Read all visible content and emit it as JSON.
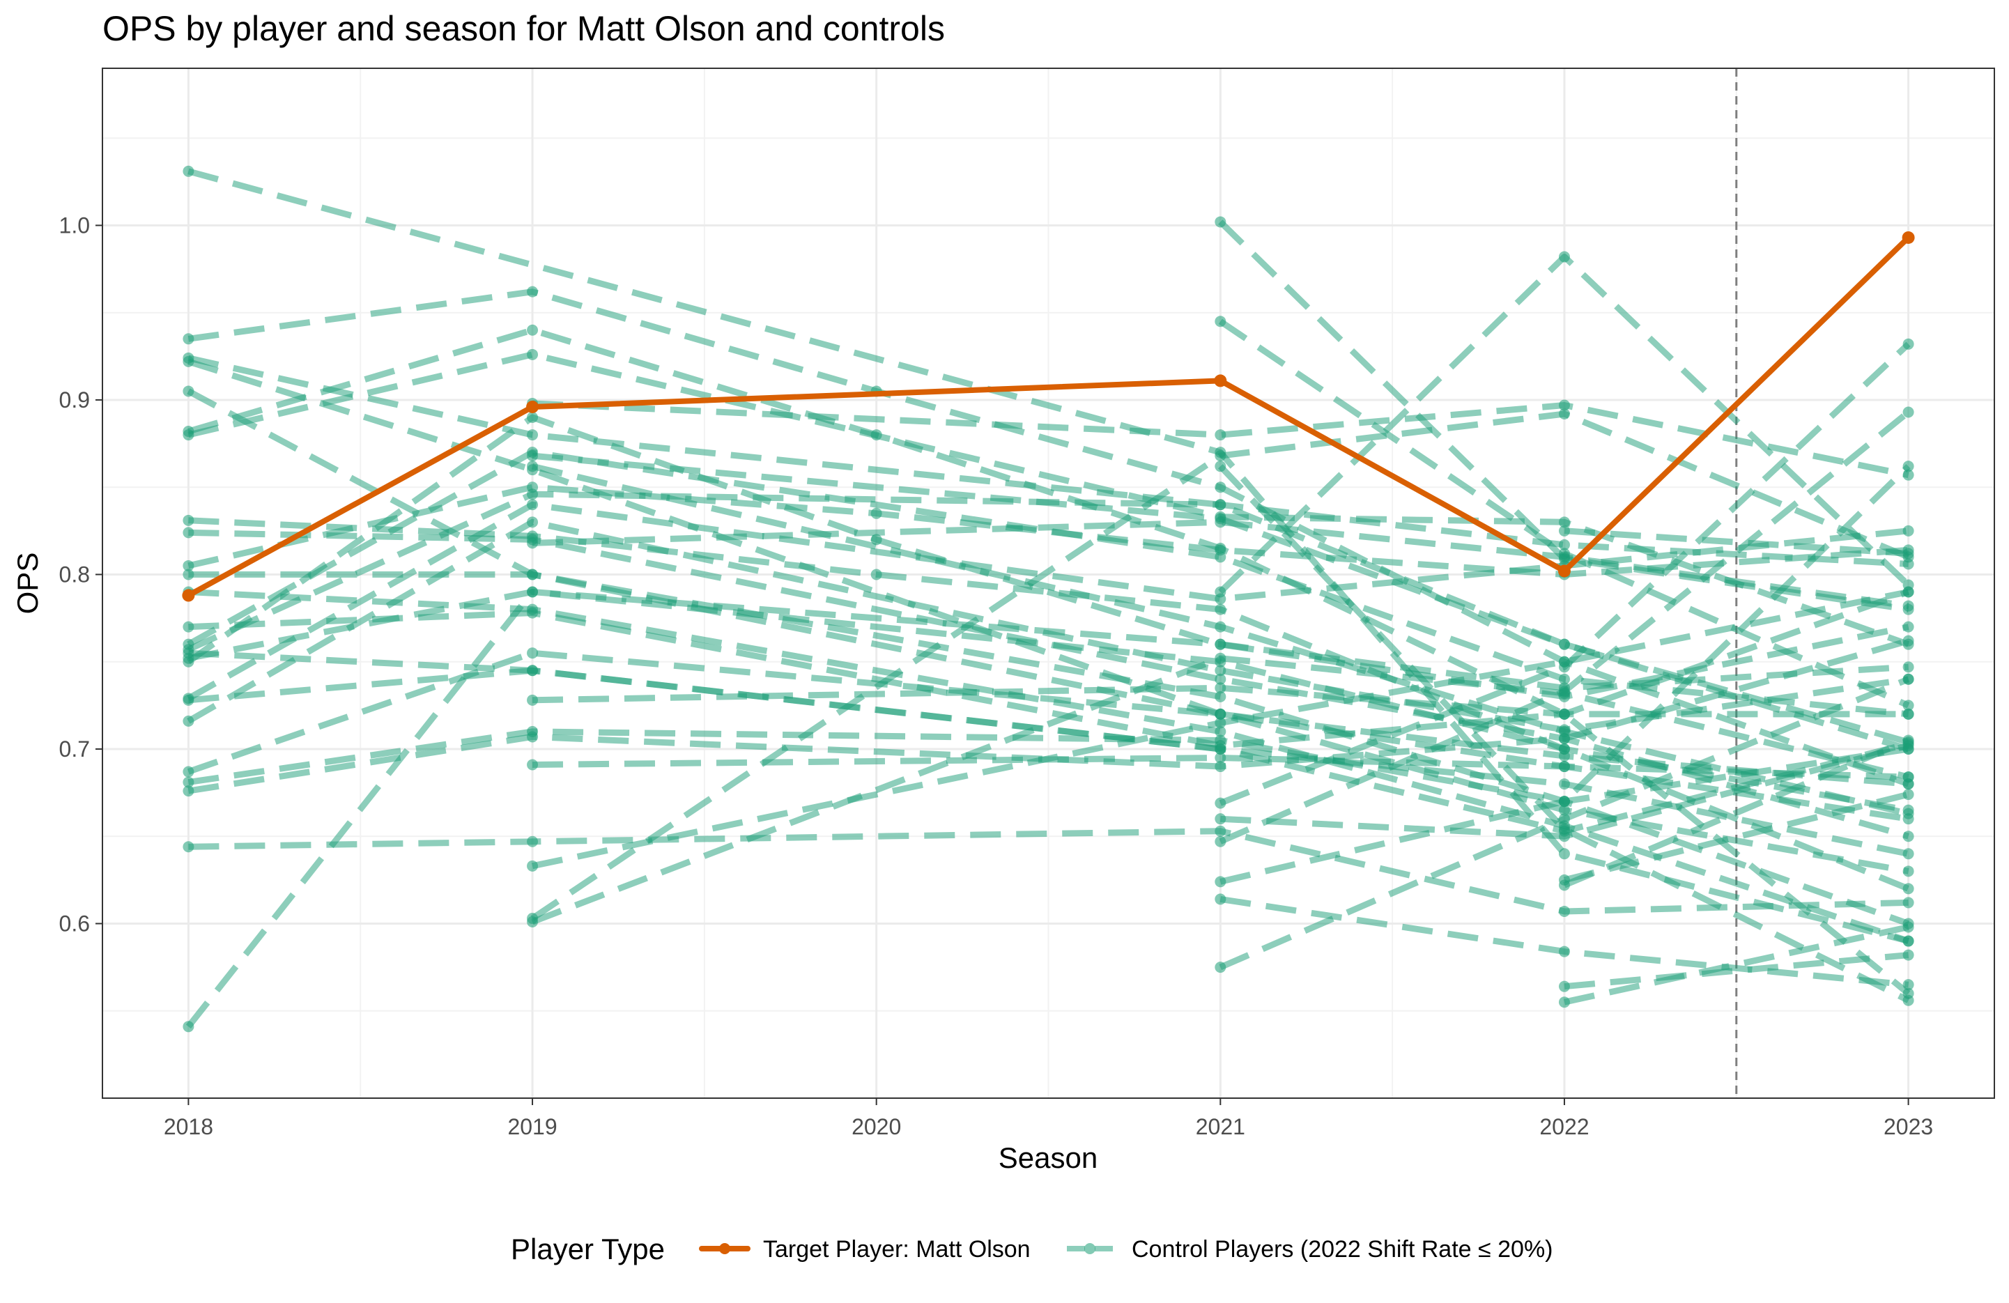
{
  "chart_data": {
    "type": "line",
    "title": "OPS by player and season for Matt Olson and controls",
    "xlabel": "Season",
    "ylabel": "OPS",
    "x": [
      2018,
      2019,
      2020,
      2021,
      2022,
      2023
    ],
    "xlim": [
      2017.75,
      2023.25
    ],
    "ylim": [
      0.5,
      1.09
    ],
    "x_ticks": [
      "2018",
      "2019",
      "2020",
      "2021",
      "2022",
      "2023"
    ],
    "y_ticks": [
      "0.6",
      "0.7",
      "0.8",
      "0.9",
      "1.0"
    ],
    "y_tick_values": [
      0.6,
      0.7,
      0.8,
      0.9,
      1.0
    ],
    "reference_line": {
      "x": 2022.5,
      "style": "dashed",
      "color": "#7f7f7f"
    },
    "grid": true,
    "legend": {
      "title": "Player Type",
      "position": "bottom",
      "target_label": "Target Player: Matt Olson",
      "control_label": "Control Players (2022 Shift Rate ≤ 20%)"
    },
    "colors": {
      "target": "#d95f02",
      "control": "#1b9e77"
    },
    "target_series": [
      {
        "x": 2018,
        "y": 0.788
      },
      {
        "x": 2019,
        "y": 0.896
      },
      {
        "x": 2021,
        "y": 0.911
      },
      {
        "x": 2022,
        "y": 0.802
      },
      {
        "x": 2023,
        "y": 0.993
      }
    ],
    "control_series": [
      [
        [
          2018,
          1.031
        ],
        [
          2021,
          0.87
        ],
        [
          2022,
          0.64
        ],
        [
          2023,
          0.59
        ]
      ],
      [
        [
          2018,
          0.935
        ],
        [
          2019,
          0.962
        ],
        [
          2020,
          0.905
        ],
        [
          2021,
          0.85
        ],
        [
          2022,
          0.75
        ],
        [
          2023,
          0.68
        ]
      ],
      [
        [
          2018,
          0.924
        ],
        [
          2019,
          0.88
        ],
        [
          2021,
          0.84
        ],
        [
          2022,
          0.76
        ],
        [
          2023,
          0.7
        ]
      ],
      [
        [
          2018,
          0.922
        ],
        [
          2019,
          0.86
        ],
        [
          2021,
          0.72
        ],
        [
          2022,
          0.69
        ],
        [
          2023,
          0.66
        ]
      ],
      [
        [
          2018,
          0.905
        ],
        [
          2019,
          0.8
        ],
        [
          2021,
          0.73
        ],
        [
          2022,
          0.67
        ],
        [
          2023,
          0.6
        ]
      ],
      [
        [
          2018,
          0.882
        ],
        [
          2019,
          0.94
        ],
        [
          2020,
          0.88
        ],
        [
          2021,
          0.815
        ],
        [
          2022,
          0.72
        ],
        [
          2023,
          0.56
        ]
      ],
      [
        [
          2018,
          0.88
        ],
        [
          2019,
          0.926
        ],
        [
          2021,
          0.833
        ],
        [
          2022,
          0.83
        ],
        [
          2023,
          0.76
        ]
      ],
      [
        [
          2018,
          0.831
        ],
        [
          2019,
          0.822
        ],
        [
          2020,
          0.8
        ],
        [
          2021,
          0.78
        ],
        [
          2022,
          0.7
        ],
        [
          2023,
          0.62
        ]
      ],
      [
        [
          2018,
          0.824
        ],
        [
          2019,
          0.82
        ],
        [
          2021,
          0.74
        ],
        [
          2022,
          0.706
        ],
        [
          2023,
          0.65
        ]
      ],
      [
        [
          2018,
          0.805
        ],
        [
          2019,
          0.85
        ],
        [
          2020,
          0.835
        ],
        [
          2021,
          0.814
        ],
        [
          2022,
          0.8
        ],
        [
          2023,
          0.814
        ]
      ],
      [
        [
          2018,
          0.8
        ],
        [
          2019,
          0.8
        ],
        [
          2021,
          0.72
        ],
        [
          2022,
          0.665
        ],
        [
          2023,
          0.63
        ]
      ],
      [
        [
          2018,
          0.79
        ],
        [
          2019,
          0.78
        ],
        [
          2021,
          0.71
        ],
        [
          2022,
          0.656
        ],
        [
          2023,
          0.59
        ]
      ],
      [
        [
          2018,
          0.77
        ],
        [
          2019,
          0.778
        ],
        [
          2021,
          0.702
        ],
        [
          2022,
          0.72
        ],
        [
          2023,
          0.79
        ]
      ],
      [
        [
          2018,
          0.76
        ],
        [
          2019,
          0.87
        ],
        [
          2021,
          0.81
        ],
        [
          2022,
          0.74
        ],
        [
          2023,
          0.72
        ]
      ],
      [
        [
          2018,
          0.757
        ],
        [
          2019,
          0.846
        ],
        [
          2021,
          0.84
        ],
        [
          2022,
          0.817
        ],
        [
          2023,
          0.806
        ]
      ],
      [
        [
          2018,
          0.755
        ],
        [
          2019,
          0.745
        ],
        [
          2021,
          0.7
        ],
        [
          2022,
          0.68
        ],
        [
          2023,
          0.64
        ]
      ],
      [
        [
          2018,
          0.752
        ],
        [
          2019,
          0.79
        ],
        [
          2021,
          0.75
        ],
        [
          2022,
          0.7
        ],
        [
          2023,
          0.665
        ]
      ],
      [
        [
          2018,
          0.75
        ],
        [
          2019,
          0.89
        ],
        [
          2020,
          0.82
        ],
        [
          2021,
          0.76
        ],
        [
          2022,
          0.73
        ],
        [
          2023,
          0.77
        ]
      ],
      [
        [
          2018,
          0.729
        ],
        [
          2019,
          0.84
        ],
        [
          2021,
          0.786
        ],
        [
          2022,
          0.805
        ],
        [
          2023,
          0.825
        ]
      ],
      [
        [
          2018,
          0.728
        ],
        [
          2019,
          0.745
        ],
        [
          2021,
          0.7
        ],
        [
          2022,
          0.653
        ],
        [
          2023,
          0.703
        ]
      ],
      [
        [
          2018,
          0.716
        ],
        [
          2019,
          0.83
        ],
        [
          2021,
          0.745
        ],
        [
          2022,
          0.711
        ],
        [
          2023,
          0.74
        ]
      ],
      [
        [
          2018,
          0.687
        ],
        [
          2019,
          0.755
        ],
        [
          2021,
          0.72
        ],
        [
          2022,
          0.696
        ],
        [
          2023,
          0.68
        ]
      ],
      [
        [
          2018,
          0.681
        ],
        [
          2019,
          0.71
        ],
        [
          2021,
          0.705
        ],
        [
          2022,
          0.67
        ],
        [
          2023,
          0.7
        ]
      ],
      [
        [
          2018,
          0.676
        ],
        [
          2019,
          0.707
        ],
        [
          2021,
          0.69
        ],
        [
          2022,
          0.706
        ],
        [
          2023,
          0.762
        ]
      ],
      [
        [
          2018,
          0.644
        ],
        [
          2019,
          0.647
        ],
        [
          2021,
          0.653
        ],
        [
          2022,
          0.607
        ],
        [
          2023,
          0.612
        ]
      ],
      [
        [
          2018,
          0.541
        ],
        [
          2019,
          0.79
        ],
        [
          2021,
          0.76
        ],
        [
          2022,
          0.735
        ],
        [
          2023,
          0.747
        ]
      ],
      [
        [
          2019,
          0.898
        ],
        [
          2021,
          0.88
        ],
        [
          2022,
          0.897
        ],
        [
          2023,
          0.857
        ]
      ],
      [
        [
          2019,
          0.868
        ],
        [
          2021,
          0.832
        ],
        [
          2022,
          0.76
        ],
        [
          2023,
          0.704
        ]
      ],
      [
        [
          2019,
          0.862
        ],
        [
          2021,
          0.77
        ],
        [
          2022,
          0.71
        ],
        [
          2023,
          0.663
        ]
      ],
      [
        [
          2019,
          0.818
        ],
        [
          2021,
          0.83
        ],
        [
          2022,
          0.81
        ],
        [
          2023,
          0.782
        ]
      ],
      [
        [
          2019,
          0.728
        ],
        [
          2021,
          0.735
        ],
        [
          2022,
          0.72
        ],
        [
          2023,
          0.72
        ]
      ],
      [
        [
          2019,
          0.691
        ],
        [
          2021,
          0.695
        ],
        [
          2022,
          0.69
        ],
        [
          2023,
          0.684
        ]
      ],
      [
        [
          2019,
          0.633
        ],
        [
          2021,
          0.715
        ],
        [
          2022,
          0.75
        ],
        [
          2023,
          0.79
        ]
      ],
      [
        [
          2019,
          0.603
        ],
        [
          2021,
          0.868
        ],
        [
          2022,
          0.892
        ],
        [
          2023,
          0.81
        ]
      ],
      [
        [
          2019,
          0.601
        ],
        [
          2021,
          0.752
        ],
        [
          2022,
          0.732
        ],
        [
          2023,
          0.684
        ]
      ],
      [
        [
          2021,
          1.002
        ],
        [
          2022,
          0.809
        ],
        [
          2023,
          0.78
        ]
      ],
      [
        [
          2021,
          0.945
        ],
        [
          2022,
          0.812
        ],
        [
          2023,
          0.725
        ]
      ],
      [
        [
          2021,
          0.862
        ],
        [
          2022,
          0.654
        ],
        [
          2023,
          0.556
        ]
      ],
      [
        [
          2021,
          0.79
        ],
        [
          2022,
          0.982
        ],
        [
          2023,
          0.794
        ]
      ],
      [
        [
          2021,
          0.669
        ],
        [
          2022,
          0.747
        ],
        [
          2023,
          0.932
        ]
      ],
      [
        [
          2021,
          0.66
        ],
        [
          2022,
          0.65
        ],
        [
          2023,
          0.702
        ]
      ],
      [
        [
          2021,
          0.647
        ],
        [
          2022,
          0.733
        ],
        [
          2023,
          0.893
        ]
      ],
      [
        [
          2021,
          0.624
        ],
        [
          2022,
          0.67
        ],
        [
          2023,
          0.862
        ]
      ],
      [
        [
          2021,
          0.614
        ],
        [
          2022,
          0.584
        ],
        [
          2023,
          0.565
        ]
      ],
      [
        [
          2021,
          0.575
        ],
        [
          2022,
          0.66
        ],
        [
          2023,
          0.74
        ]
      ],
      [
        [
          2022,
          0.555
        ],
        [
          2023,
          0.598
        ]
      ],
      [
        [
          2022,
          0.564
        ],
        [
          2023,
          0.582
        ]
      ],
      [
        [
          2022,
          0.625
        ],
        [
          2023,
          0.674
        ]
      ],
      [
        [
          2022,
          0.622
        ],
        [
          2023,
          0.705
        ]
      ],
      [
        [
          2022,
          0.825
        ],
        [
          2023,
          0.812
        ]
      ]
    ]
  }
}
